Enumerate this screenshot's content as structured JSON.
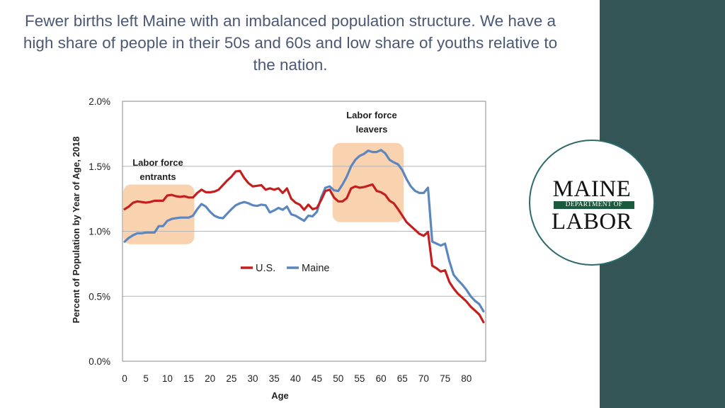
{
  "headline": "Fewer births left Maine with an imbalanced population structure. We have a high share of people in their 50s and 60s and low share of youths relative to the nation.",
  "logo": {
    "line1": "MAINE",
    "band": "DEPARTMENT OF",
    "line2": "LABOR"
  },
  "colors": {
    "us": "#c41e1e",
    "maine": "#5b86bf",
    "highlight": "#f9d3b0",
    "title": "#4a5876",
    "sidebar": "#335555"
  },
  "chart_data": {
    "type": "line",
    "xlabel": "Age",
    "ylabel": "Percent of Population by Year of Age, 2018",
    "xlim": [
      0,
      85
    ],
    "ylim": [
      0,
      2.0
    ],
    "xticks": [
      0,
      5,
      10,
      15,
      20,
      25,
      30,
      35,
      40,
      45,
      50,
      55,
      60,
      65,
      70,
      75,
      80
    ],
    "yticks": [
      0,
      0.5,
      1.0,
      1.5,
      2.0
    ],
    "ytick_labels": [
      "0.0%",
      "0.5%",
      "1.0%",
      "1.5%",
      "2.0%"
    ],
    "grid": "horizontal",
    "legend": "center",
    "annotations": [
      {
        "lines": [
          "Labor force",
          "entrants"
        ],
        "x_range": [
          0,
          16
        ],
        "y_range": [
          0.9,
          1.36
        ]
      },
      {
        "lines": [
          "Labor force",
          "leavers"
        ],
        "x_range": [
          49,
          65
        ],
        "y_range": [
          1.07,
          1.68
        ]
      }
    ],
    "series": [
      {
        "name": "U.S.",
        "x": [
          0,
          1,
          2,
          3,
          4,
          5,
          6,
          7,
          8,
          9,
          10,
          11,
          12,
          13,
          14,
          15,
          16,
          17,
          18,
          19,
          20,
          21,
          22,
          23,
          24,
          25,
          26,
          27,
          28,
          29,
          30,
          31,
          32,
          33,
          34,
          35,
          36,
          37,
          38,
          39,
          40,
          41,
          42,
          43,
          44,
          45,
          46,
          47,
          48,
          49,
          50,
          51,
          52,
          53,
          54,
          55,
          56,
          57,
          58,
          59,
          60,
          61,
          62,
          63,
          64,
          65,
          66,
          67,
          68,
          69,
          70,
          71,
          72,
          73,
          74,
          75,
          76,
          77,
          78,
          79,
          80,
          81,
          82,
          83,
          84
        ],
        "values": [
          1.17,
          1.19,
          1.22,
          1.23,
          1.225,
          1.22,
          1.225,
          1.235,
          1.235,
          1.235,
          1.275,
          1.28,
          1.27,
          1.265,
          1.27,
          1.26,
          1.26,
          1.295,
          1.32,
          1.3,
          1.3,
          1.305,
          1.32,
          1.355,
          1.39,
          1.42,
          1.46,
          1.465,
          1.41,
          1.37,
          1.345,
          1.35,
          1.355,
          1.32,
          1.33,
          1.32,
          1.33,
          1.295,
          1.33,
          1.25,
          1.22,
          1.205,
          1.165,
          1.205,
          1.17,
          1.18,
          1.24,
          1.31,
          1.32,
          1.26,
          1.23,
          1.23,
          1.255,
          1.33,
          1.345,
          1.335,
          1.34,
          1.35,
          1.36,
          1.31,
          1.3,
          1.28,
          1.235,
          1.215,
          1.17,
          1.12,
          1.07,
          1.04,
          1.01,
          0.98,
          0.965,
          0.995,
          0.735,
          0.715,
          0.69,
          0.7,
          0.61,
          0.56,
          0.52,
          0.49,
          0.46,
          0.42,
          0.39,
          0.36,
          0.3
        ]
      },
      {
        "name": "Maine",
        "x": [
          0,
          1,
          2,
          3,
          4,
          5,
          6,
          7,
          8,
          9,
          10,
          11,
          12,
          13,
          14,
          15,
          16,
          17,
          18,
          19,
          20,
          21,
          22,
          23,
          24,
          25,
          26,
          27,
          28,
          29,
          30,
          31,
          32,
          33,
          34,
          35,
          36,
          37,
          38,
          39,
          40,
          41,
          42,
          43,
          44,
          45,
          46,
          47,
          48,
          49,
          50,
          51,
          52,
          53,
          54,
          55,
          56,
          57,
          58,
          59,
          60,
          61,
          62,
          63,
          64,
          65,
          66,
          67,
          68,
          69,
          70,
          71,
          72,
          73,
          74,
          75,
          76,
          77,
          78,
          79,
          80,
          81,
          82,
          83,
          84
        ],
        "values": [
          0.92,
          0.95,
          0.97,
          0.985,
          0.985,
          0.99,
          0.99,
          0.99,
          1.04,
          1.04,
          1.08,
          1.095,
          1.1,
          1.105,
          1.105,
          1.105,
          1.12,
          1.17,
          1.21,
          1.19,
          1.15,
          1.12,
          1.105,
          1.1,
          1.135,
          1.17,
          1.2,
          1.215,
          1.225,
          1.215,
          1.2,
          1.195,
          1.205,
          1.2,
          1.145,
          1.16,
          1.18,
          1.165,
          1.19,
          1.13,
          1.12,
          1.1,
          1.08,
          1.12,
          1.115,
          1.15,
          1.26,
          1.335,
          1.345,
          1.315,
          1.31,
          1.36,
          1.42,
          1.5,
          1.55,
          1.58,
          1.595,
          1.62,
          1.61,
          1.61,
          1.625,
          1.6,
          1.55,
          1.53,
          1.515,
          1.47,
          1.4,
          1.345,
          1.31,
          1.295,
          1.295,
          1.335,
          0.92,
          0.905,
          0.89,
          0.905,
          0.77,
          0.665,
          0.625,
          0.59,
          0.55,
          0.5,
          0.465,
          0.44,
          0.385
        ]
      }
    ]
  }
}
